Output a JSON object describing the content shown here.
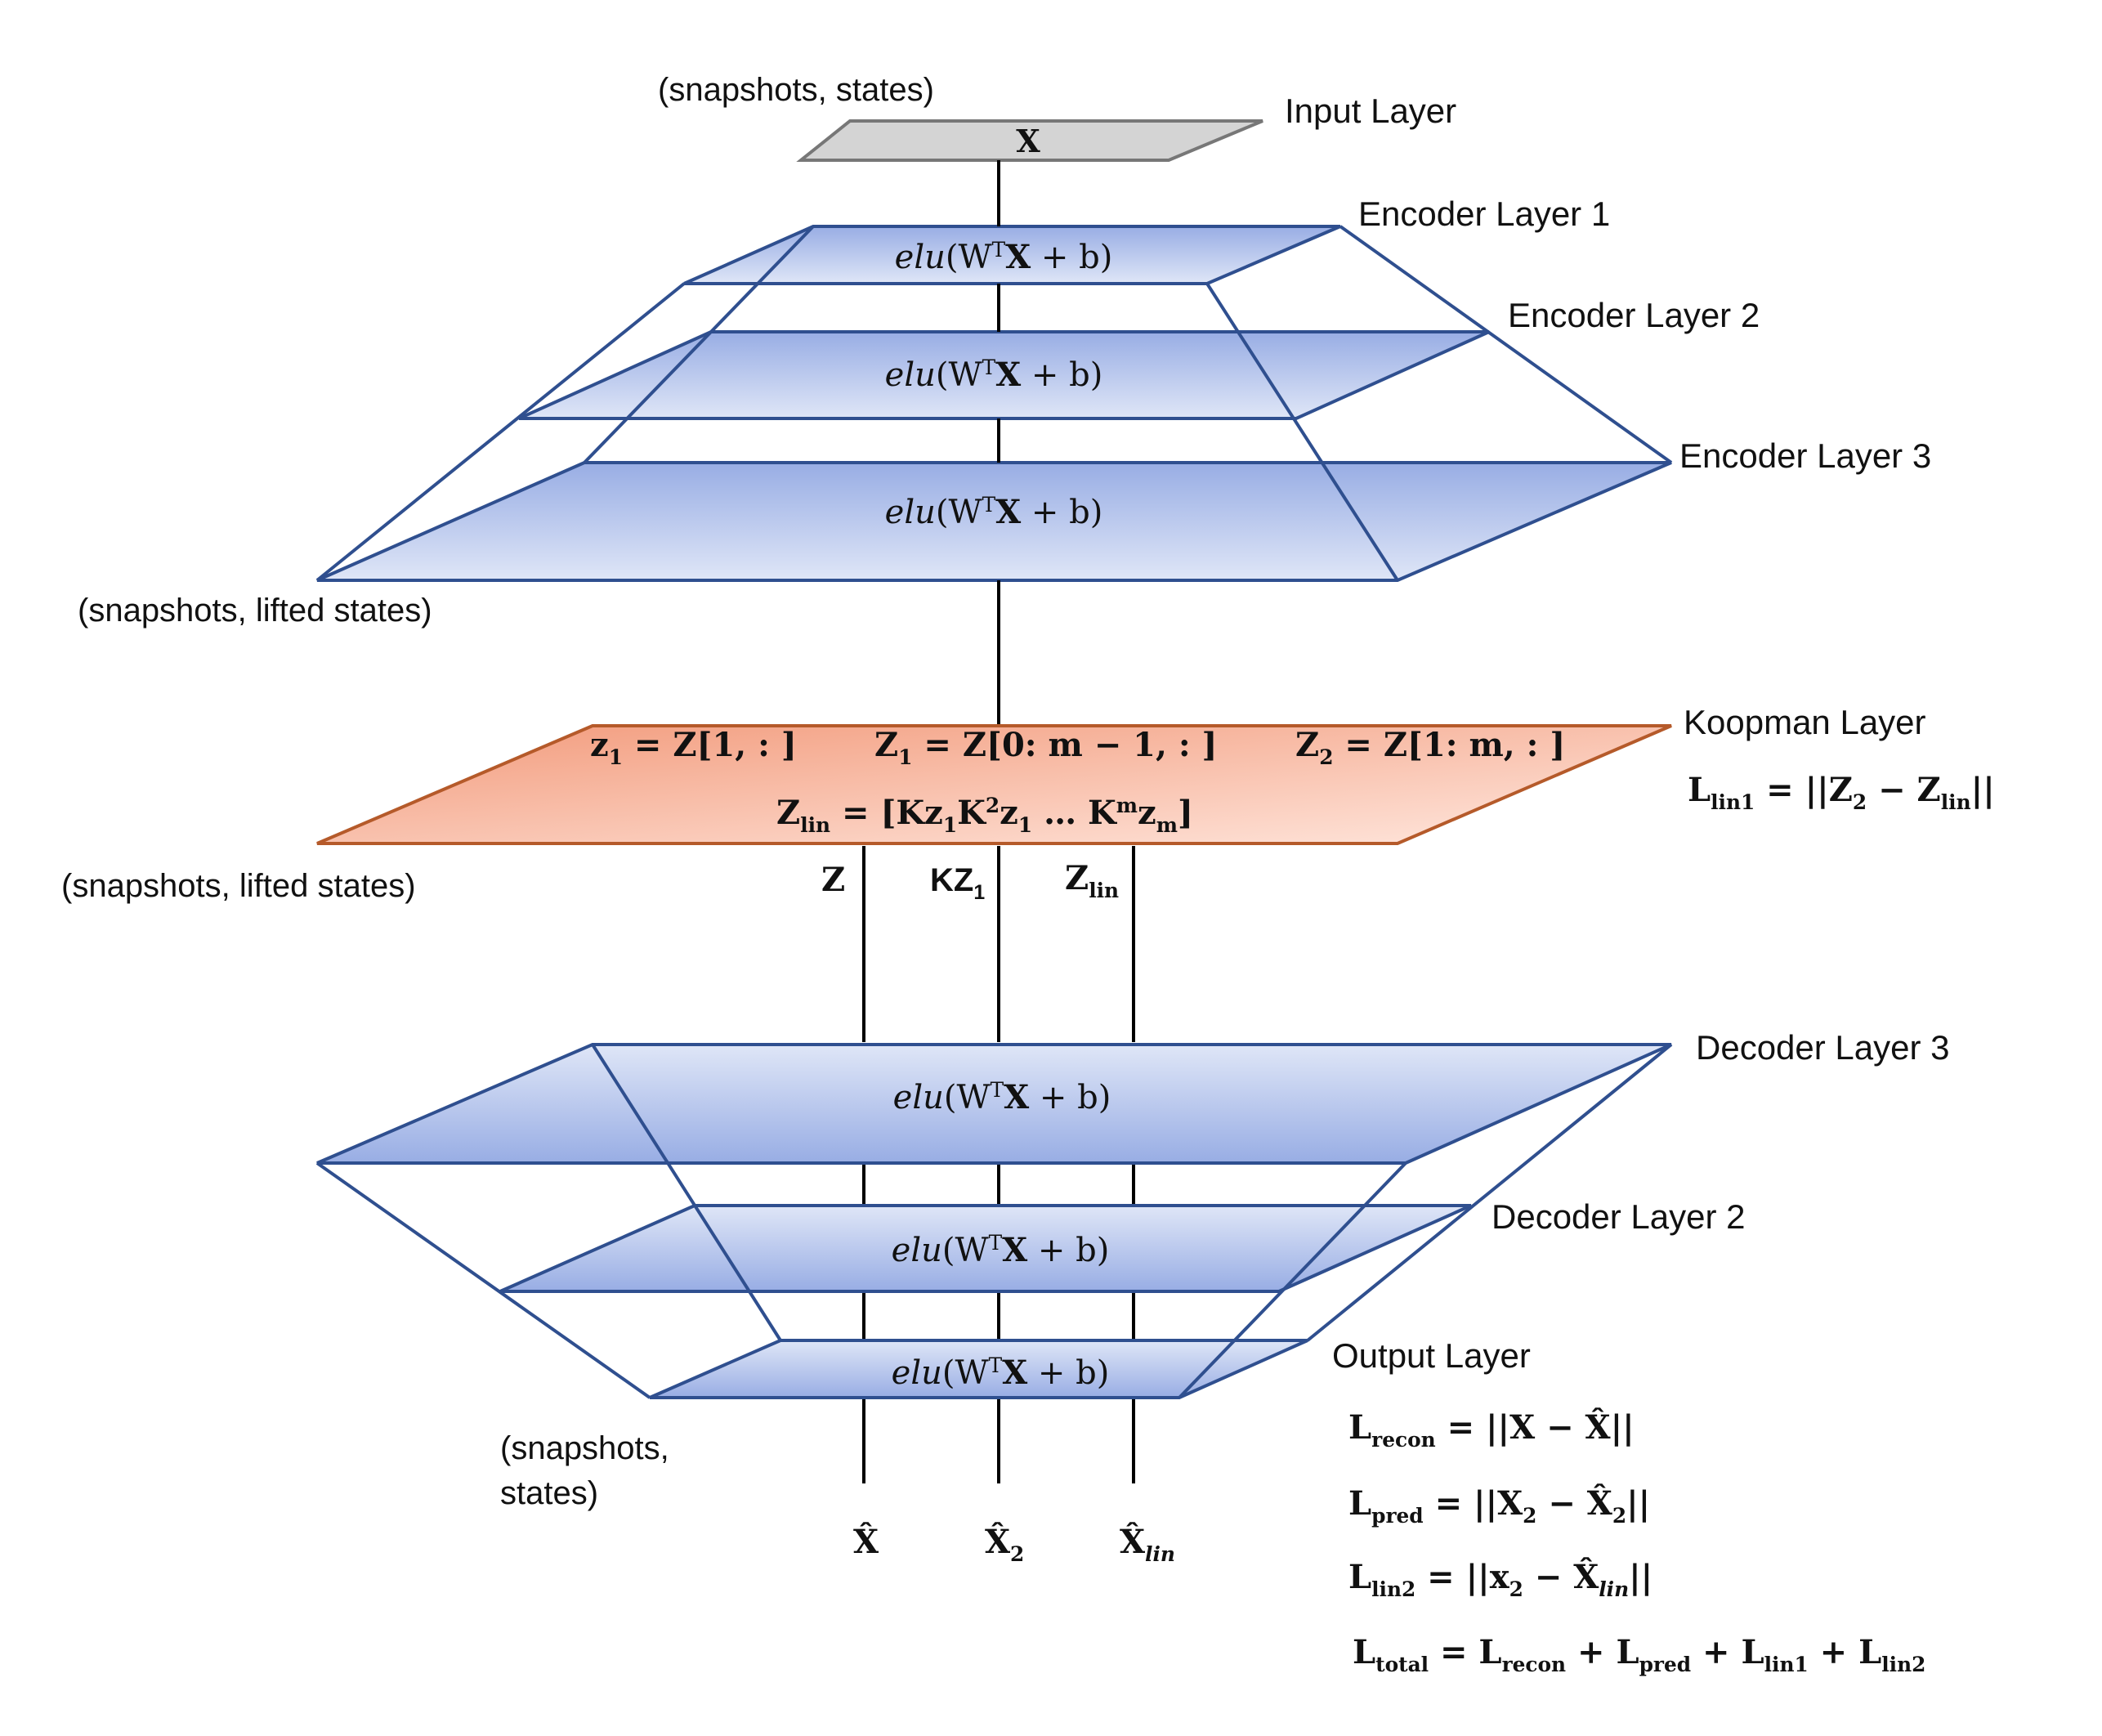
{
  "labels": {
    "input_shape": "(snapshots, states)",
    "input_layer": "Input Layer",
    "input_var": "X",
    "encoder_1": "Encoder Layer 1",
    "encoder_2": "Encoder Layer 2",
    "encoder_3": "Encoder Layer 3",
    "encoder_shape": "(snapshots, lifted states)",
    "koopman_layer": "Koopman Layer",
    "koopman_shape": "(snapshots, lifted states)",
    "decoder_3": "Decoder Layer 3",
    "decoder_2": "Decoder Layer 2",
    "output_layer": "Output Layer",
    "output_shape_line1": "(snapshots,",
    "output_shape_line2": "states)"
  },
  "layer_formula": {
    "fn": "elu",
    "open": "(W",
    "sup": "T",
    "var": "X",
    "rest": " + b)"
  },
  "koopman": {
    "eq1": {
      "lhs": "z",
      "lhs_sub": "1",
      "rhs": " = Z[1, : ]"
    },
    "eq2": {
      "lhs": "Z",
      "lhs_sub": "1",
      "rhs": " = Z[0: m − 1, : ]"
    },
    "eq3": {
      "lhs": "Z",
      "lhs_sub": "2",
      "rhs": " = Z[1: m, : ]"
    },
    "eq4": {
      "lhs": "Z",
      "lhs_sub": "lin",
      "p1": " = [Kz",
      "p1_sub": "1",
      "p2": "K",
      "p2_sup": "2",
      "p3": "z",
      "p3_sub": "1",
      "p4": " … K",
      "p4_sup": "m",
      "p5": "z",
      "p5_sub": "m",
      "p6": "]"
    },
    "loss": {
      "lhs": "L",
      "lhs_sub": "lin1",
      "rhs1": " = ||Z",
      "rhs1_sub": "2",
      "rhs2": " − Z",
      "rhs2_sub": "lin",
      "rhs3": "||"
    }
  },
  "streams": {
    "z": "Z",
    "kz": "KZ",
    "kz_sub": "1",
    "zlin": "Z",
    "zlin_sub": "lin"
  },
  "outputs": {
    "xhat": "X̂",
    "x2hat": "X̂",
    "x2hat_sub": "2",
    "xlinhat": "X̂",
    "xlinhat_sub": "lin"
  },
  "losses": {
    "recon": {
      "lhs": "L",
      "sub": "recon",
      "a": " = ||X − ",
      "b": "X̂",
      "c": "||"
    },
    "pred": {
      "lhs": "L",
      "sub": "pred",
      "a": " = ||X",
      "a_sub": "2",
      "b": " − X̂",
      "b_sub": "2",
      "c": "||"
    },
    "lin2": {
      "lhs": "L",
      "sub": "lin2",
      "a": " = ||x",
      "a_sub": "2",
      "b": " − X̂",
      "b_sub": "lin",
      "c": "||"
    },
    "total": {
      "lhs": "L",
      "sub": "total",
      "a": " = L",
      "a_sub": "recon",
      "b": " + L",
      "b_sub": "pred",
      "c": " + L",
      "c_sub": "lin1",
      "d": " + L",
      "d_sub": "lin2"
    }
  },
  "colors": {
    "layer_stroke": "#2f4f8f",
    "layer_fill_light": "#dbe3f6",
    "layer_fill_dark": "#9fb3e6",
    "koopman_fill_dark": "#f4a487",
    "koopman_fill_light": "#fde3d8",
    "koopman_stroke": "#b55a2a",
    "input_fill": "#d4d4d4",
    "input_stroke": "#777777"
  }
}
